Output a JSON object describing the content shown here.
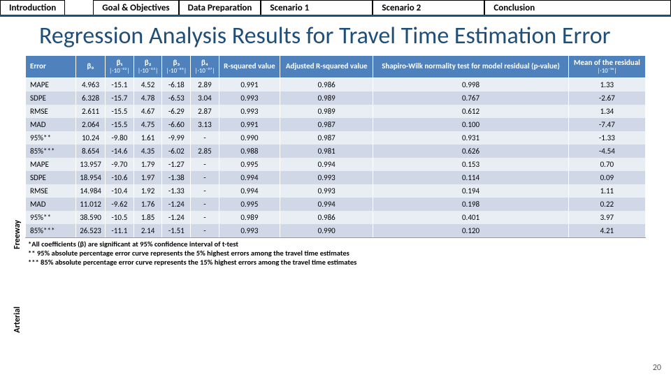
{
  "nav": {
    "items": [
      "Introduction",
      "Goal & Objectives",
      "Data Preparation",
      "Scenario 1",
      "Scenario 2",
      "Conclusion"
    ]
  },
  "title": "Regression Analysis Results for Travel Time Estimation Error",
  "headers": {
    "error": "Error",
    "b0": "β₀",
    "b1": "β₁",
    "b1_sub": "|·10⁻⁰²|",
    "b2": "β₂",
    "b2_sub": "|·10⁻⁰³|",
    "b3": "β₃",
    "b3_sub": "|·10⁻⁰⁵|",
    "b4": "β₄",
    "b4_sub": "|·10⁻⁰⁷|",
    "r2": "R-squared value",
    "adjr2": "Adjusted R-squared value",
    "shapiro": "Shapiro-Wilk normality test for model residual (p-value)",
    "mean": "Mean of the residual",
    "mean_sub": "|·10⁻¹⁶|"
  },
  "groups": [
    {
      "label": "Freeway"
    },
    {
      "label": "Arterial"
    }
  ],
  "rows": [
    {
      "g": 0,
      "error": "MAPE",
      "b0": "4.963",
      "b1": "-15.1",
      "b2": "4.52",
      "b3": "-6.18",
      "b4": "2.89",
      "r2": "0.991",
      "adjr2": "0.986",
      "sw": "0.998",
      "mean": "1.33"
    },
    {
      "g": 0,
      "error": "SDPE",
      "b0": "6.328",
      "b1": "-15.7",
      "b2": "4.78",
      "b3": "-6.53",
      "b4": "3.04",
      "r2": "0.993",
      "adjr2": "0.989",
      "sw": "0.767",
      "mean": "-2.67"
    },
    {
      "g": 0,
      "error": "RMSE",
      "b0": "2.611",
      "b1": "-15.5",
      "b2": "4.67",
      "b3": "-6.29",
      "b4": "2.87",
      "r2": "0.993",
      "adjr2": "0.989",
      "sw": "0.612",
      "mean": "1.34"
    },
    {
      "g": 0,
      "error": "MAD",
      "b0": "2.064",
      "b1": "-15.5",
      "b2": "4.75",
      "b3": "-6.60",
      "b4": "3.13",
      "r2": "0.991",
      "adjr2": "0.987",
      "sw": "0.100",
      "mean": "-7.47"
    },
    {
      "g": 0,
      "error": "95%**",
      "b0": "10.24",
      "b1": "-9.80",
      "b2": "1.61",
      "b3": "-9.99",
      "b4": "-",
      "r2": "0.990",
      "adjr2": "0.987",
      "sw": "0.931",
      "mean": "-1.33"
    },
    {
      "g": 0,
      "error": "85%***",
      "b0": "8.654",
      "b1": "-14.6",
      "b2": "4.35",
      "b3": "-6.02",
      "b4": "2.85",
      "r2": "0.988",
      "adjr2": "0.981",
      "sw": "0.626",
      "mean": "-4.54"
    },
    {
      "g": 1,
      "error": "MAPE",
      "b0": "13.957",
      "b1": "-9.70",
      "b2": "1.79",
      "b3": "-1.27",
      "b4": "-",
      "r2": "0.995",
      "adjr2": "0.994",
      "sw": "0.153",
      "mean": "0.70"
    },
    {
      "g": 1,
      "error": "SDPE",
      "b0": "18.954",
      "b1": "-10.6",
      "b2": "1.97",
      "b3": "-1.38",
      "b4": "-",
      "r2": "0.994",
      "adjr2": "0.993",
      "sw": "0.114",
      "mean": "0.09"
    },
    {
      "g": 1,
      "error": "RMSE",
      "b0": "14.984",
      "b1": "-10.4",
      "b2": "1.92",
      "b3": "-1.33",
      "b4": "-",
      "r2": "0.994",
      "adjr2": "0.993",
      "sw": "0.194",
      "mean": "1.11"
    },
    {
      "g": 1,
      "error": "MAD",
      "b0": "11.012",
      "b1": "-9.62",
      "b2": "1.76",
      "b3": "-1.24",
      "b4": "-",
      "r2": "0.995",
      "adjr2": "0.994",
      "sw": "0.198",
      "mean": "0.22"
    },
    {
      "g": 1,
      "error": "95%**",
      "b0": "38.590",
      "b1": "-10.5",
      "b2": "1.85",
      "b3": "-1.24",
      "b4": "-",
      "r2": "0.989",
      "adjr2": "0.986",
      "sw": "0.401",
      "mean": "3.97"
    },
    {
      "g": 1,
      "error": "85%***",
      "b0": "26.523",
      "b1": "-11.1",
      "b2": "2.14",
      "b3": "-1.51",
      "b4": "-",
      "r2": "0.993",
      "adjr2": "0.990",
      "sw": "0.120",
      "mean": "4.21"
    }
  ],
  "footnotes": {
    "f1": "*All coefficients (β) are significant at 95% confidence interval of t-test",
    "f2": "** 95% absolute percentage error curve represents the 5% highest errors among the travel time estimates",
    "f3": "*** 85% absolute percentage error curve represents the 15% highest errors among the travel time estimates"
  },
  "page": "20",
  "colors": {
    "nav_border": "#1f4e79",
    "title_color": "#1f4e79",
    "th_bg": "#4f81bd",
    "row_odd": "#e9edf4",
    "row_even": "#d0d8e8"
  }
}
